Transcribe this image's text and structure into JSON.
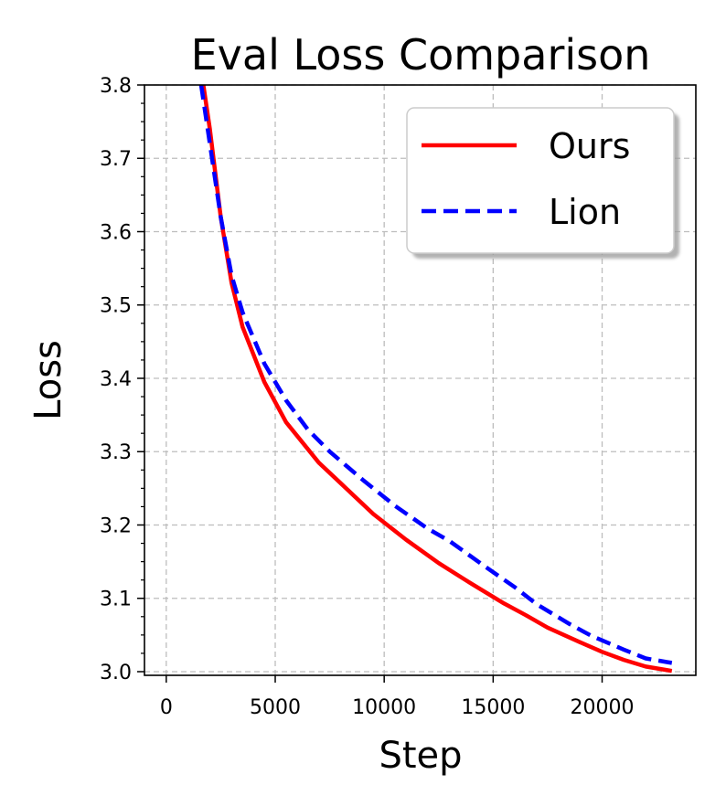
{
  "chart_data": {
    "type": "line",
    "title": "Eval Loss Comparison",
    "xlabel": "Step",
    "ylabel": "Loss",
    "xlim": [
      -1000,
      24300
    ],
    "ylim": [
      2.995,
      3.8
    ],
    "xticks": [
      0,
      5000,
      10000,
      15000,
      20000
    ],
    "xtick_labels": [
      "0",
      "5000",
      "10000",
      "15000",
      "20000"
    ],
    "yticks": [
      3.0,
      3.1,
      3.2,
      3.3,
      3.4,
      3.5,
      3.6,
      3.7,
      3.8
    ],
    "ytick_labels": [
      "3.0",
      "3.1",
      "3.2",
      "3.3",
      "3.4",
      "3.5",
      "3.6",
      "3.7",
      "3.8"
    ],
    "grid": true,
    "legend_position": "top-right",
    "series": [
      {
        "name": "Ours",
        "color": "#ff0000",
        "style": "solid",
        "x": [
          1700,
          2000,
          2500,
          3000,
          3500,
          4500,
          5500,
          7000,
          8000,
          9500,
          11000,
          12500,
          14000,
          15500,
          16500,
          17500,
          19000,
          20000,
          21000,
          22000,
          23000,
          23200
        ],
        "y": [
          3.8,
          3.74,
          3.62,
          3.53,
          3.47,
          3.395,
          3.34,
          3.285,
          3.257,
          3.215,
          3.18,
          3.148,
          3.12,
          3.093,
          3.077,
          3.06,
          3.04,
          3.027,
          3.016,
          3.007,
          3.002,
          3.001
        ]
      },
      {
        "name": "Lion",
        "color": "#0000ff",
        "style": "dashed",
        "x": [
          1600,
          2000,
          2500,
          3000,
          3500,
          4500,
          5500,
          6500,
          7500,
          9000,
          10500,
          12000,
          13000,
          14500,
          16000,
          17000,
          18500,
          19500,
          21000,
          22000,
          23000,
          23200
        ],
        "y": [
          3.8,
          3.72,
          3.62,
          3.54,
          3.49,
          3.42,
          3.37,
          3.33,
          3.3,
          3.262,
          3.226,
          3.195,
          3.178,
          3.146,
          3.115,
          3.092,
          3.065,
          3.049,
          3.03,
          3.018,
          3.013,
          3.012
        ]
      }
    ]
  }
}
